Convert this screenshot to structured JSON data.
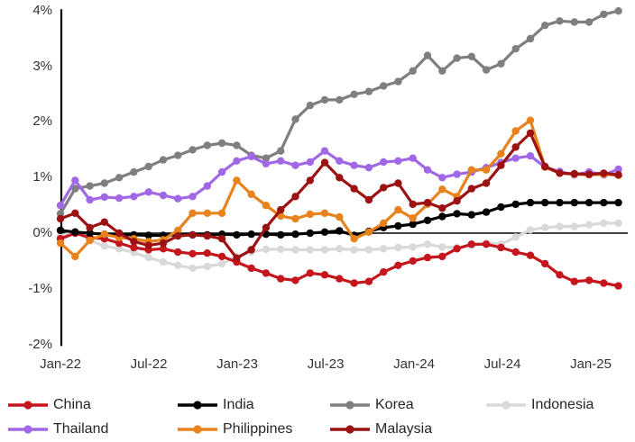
{
  "chart_data": {
    "type": "line",
    "title": "",
    "xlabel": "",
    "ylabel": "",
    "grid": false,
    "legend_position": "bottom",
    "ylim": [
      -2,
      4
    ],
    "y_tick_labels": [
      "4%",
      "3%",
      "2%",
      "1%",
      "0%",
      "-1%",
      "-2%"
    ],
    "y_tick_values": [
      4,
      3,
      2,
      1,
      0,
      -1,
      -2
    ],
    "x_tick_labels": [
      "Jan-22",
      "Jul-22",
      "Jan-23",
      "Jul-23",
      "Jan-24",
      "Jul-24",
      "Jan-25"
    ],
    "x_start": "Jan-22",
    "x_end": "Mar-25",
    "n_points": 39,
    "draw_order": [
      "Indonesia",
      "Korea",
      "China",
      "India",
      "Thailand",
      "Philippines",
      "Malaysia"
    ],
    "series": [
      {
        "name": "China",
        "color": "#c4161c",
        "values": [
          -0.1,
          0.0,
          -0.08,
          -0.1,
          -0.18,
          -0.26,
          -0.3,
          -0.28,
          -0.34,
          -0.37,
          -0.36,
          -0.42,
          -0.52,
          -0.63,
          -0.72,
          -0.82,
          -0.85,
          -0.72,
          -0.75,
          -0.82,
          -0.9,
          -0.87,
          -0.7,
          -0.58,
          -0.5,
          -0.44,
          -0.42,
          -0.28,
          -0.2,
          -0.2,
          -0.26,
          -0.34,
          -0.4,
          -0.55,
          -0.75,
          -0.87,
          -0.85,
          -0.9,
          -0.95
        ]
      },
      {
        "name": "India",
        "color": "#000000",
        "values": [
          0.05,
          0.02,
          0.0,
          -0.02,
          -0.03,
          -0.03,
          -0.04,
          -0.04,
          -0.03,
          -0.03,
          -0.03,
          -0.02,
          -0.03,
          -0.02,
          -0.02,
          -0.03,
          -0.02,
          0.0,
          0.02,
          0.04,
          -0.04,
          0.03,
          0.1,
          0.13,
          0.16,
          0.23,
          0.3,
          0.35,
          0.33,
          0.38,
          0.47,
          0.52,
          0.55,
          0.55,
          0.55,
          0.55,
          0.55,
          0.55,
          0.55
        ]
      },
      {
        "name": "Korea",
        "color": "#7f7f7f",
        "values": [
          0.35,
          0.8,
          0.85,
          0.9,
          1.0,
          1.1,
          1.2,
          1.32,
          1.4,
          1.5,
          1.58,
          1.62,
          1.58,
          1.4,
          1.35,
          1.48,
          2.05,
          2.3,
          2.4,
          2.4,
          2.5,
          2.55,
          2.65,
          2.73,
          2.92,
          3.2,
          2.92,
          3.15,
          3.18,
          2.94,
          3.05,
          3.32,
          3.5,
          3.74,
          3.82,
          3.8,
          3.8,
          3.94,
          4.0
        ]
      },
      {
        "name": "Indonesia",
        "color": "#d9d9d9",
        "values": [
          -0.05,
          0.03,
          -0.13,
          -0.23,
          -0.28,
          -0.35,
          -0.44,
          -0.52,
          -0.58,
          -0.63,
          -0.6,
          -0.55,
          -0.42,
          -0.34,
          -0.29,
          -0.29,
          -0.3,
          -0.3,
          -0.3,
          -0.28,
          -0.3,
          -0.3,
          -0.28,
          -0.26,
          -0.25,
          -0.2,
          -0.25,
          -0.26,
          -0.22,
          -0.18,
          -0.2,
          -0.07,
          0.06,
          0.1,
          0.12,
          0.12,
          0.15,
          0.18,
          0.18
        ]
      },
      {
        "name": "Thailand",
        "color": "#a168e6",
        "values": [
          0.5,
          0.95,
          0.6,
          0.65,
          0.63,
          0.66,
          0.74,
          0.68,
          0.62,
          0.66,
          0.85,
          1.1,
          1.3,
          1.38,
          1.25,
          1.3,
          1.22,
          1.28,
          1.48,
          1.3,
          1.22,
          1.18,
          1.28,
          1.3,
          1.35,
          1.14,
          1.0,
          1.06,
          1.1,
          1.18,
          1.27,
          1.35,
          1.39,
          1.19,
          1.11,
          1.05,
          1.1,
          1.05,
          1.15
        ]
      },
      {
        "name": "Philippines",
        "color": "#e8821c",
        "values": [
          -0.18,
          -0.42,
          -0.13,
          -0.02,
          -0.08,
          -0.1,
          -0.15,
          -0.12,
          0.05,
          0.36,
          0.36,
          0.36,
          0.95,
          0.7,
          0.5,
          0.31,
          0.26,
          0.34,
          0.36,
          0.29,
          -0.1,
          0.02,
          0.18,
          0.42,
          0.27,
          0.52,
          0.79,
          0.66,
          1.14,
          1.14,
          1.43,
          1.84,
          2.03,
          1.19,
          1.08,
          1.06,
          1.05,
          1.06,
          1.04
        ]
      },
      {
        "name": "Malaysia",
        "color": "#9c1212",
        "values": [
          0.26,
          0.36,
          0.1,
          0.2,
          0.0,
          -0.15,
          -0.22,
          -0.18,
          -0.05,
          -0.03,
          -0.05,
          -0.1,
          -0.45,
          -0.3,
          0.1,
          0.42,
          0.66,
          0.95,
          1.27,
          1.0,
          0.8,
          0.6,
          0.82,
          0.9,
          0.52,
          0.55,
          0.45,
          0.58,
          0.8,
          0.9,
          1.22,
          1.55,
          1.8,
          1.2,
          1.08,
          1.07,
          1.06,
          1.08,
          1.05
        ]
      }
    ]
  }
}
